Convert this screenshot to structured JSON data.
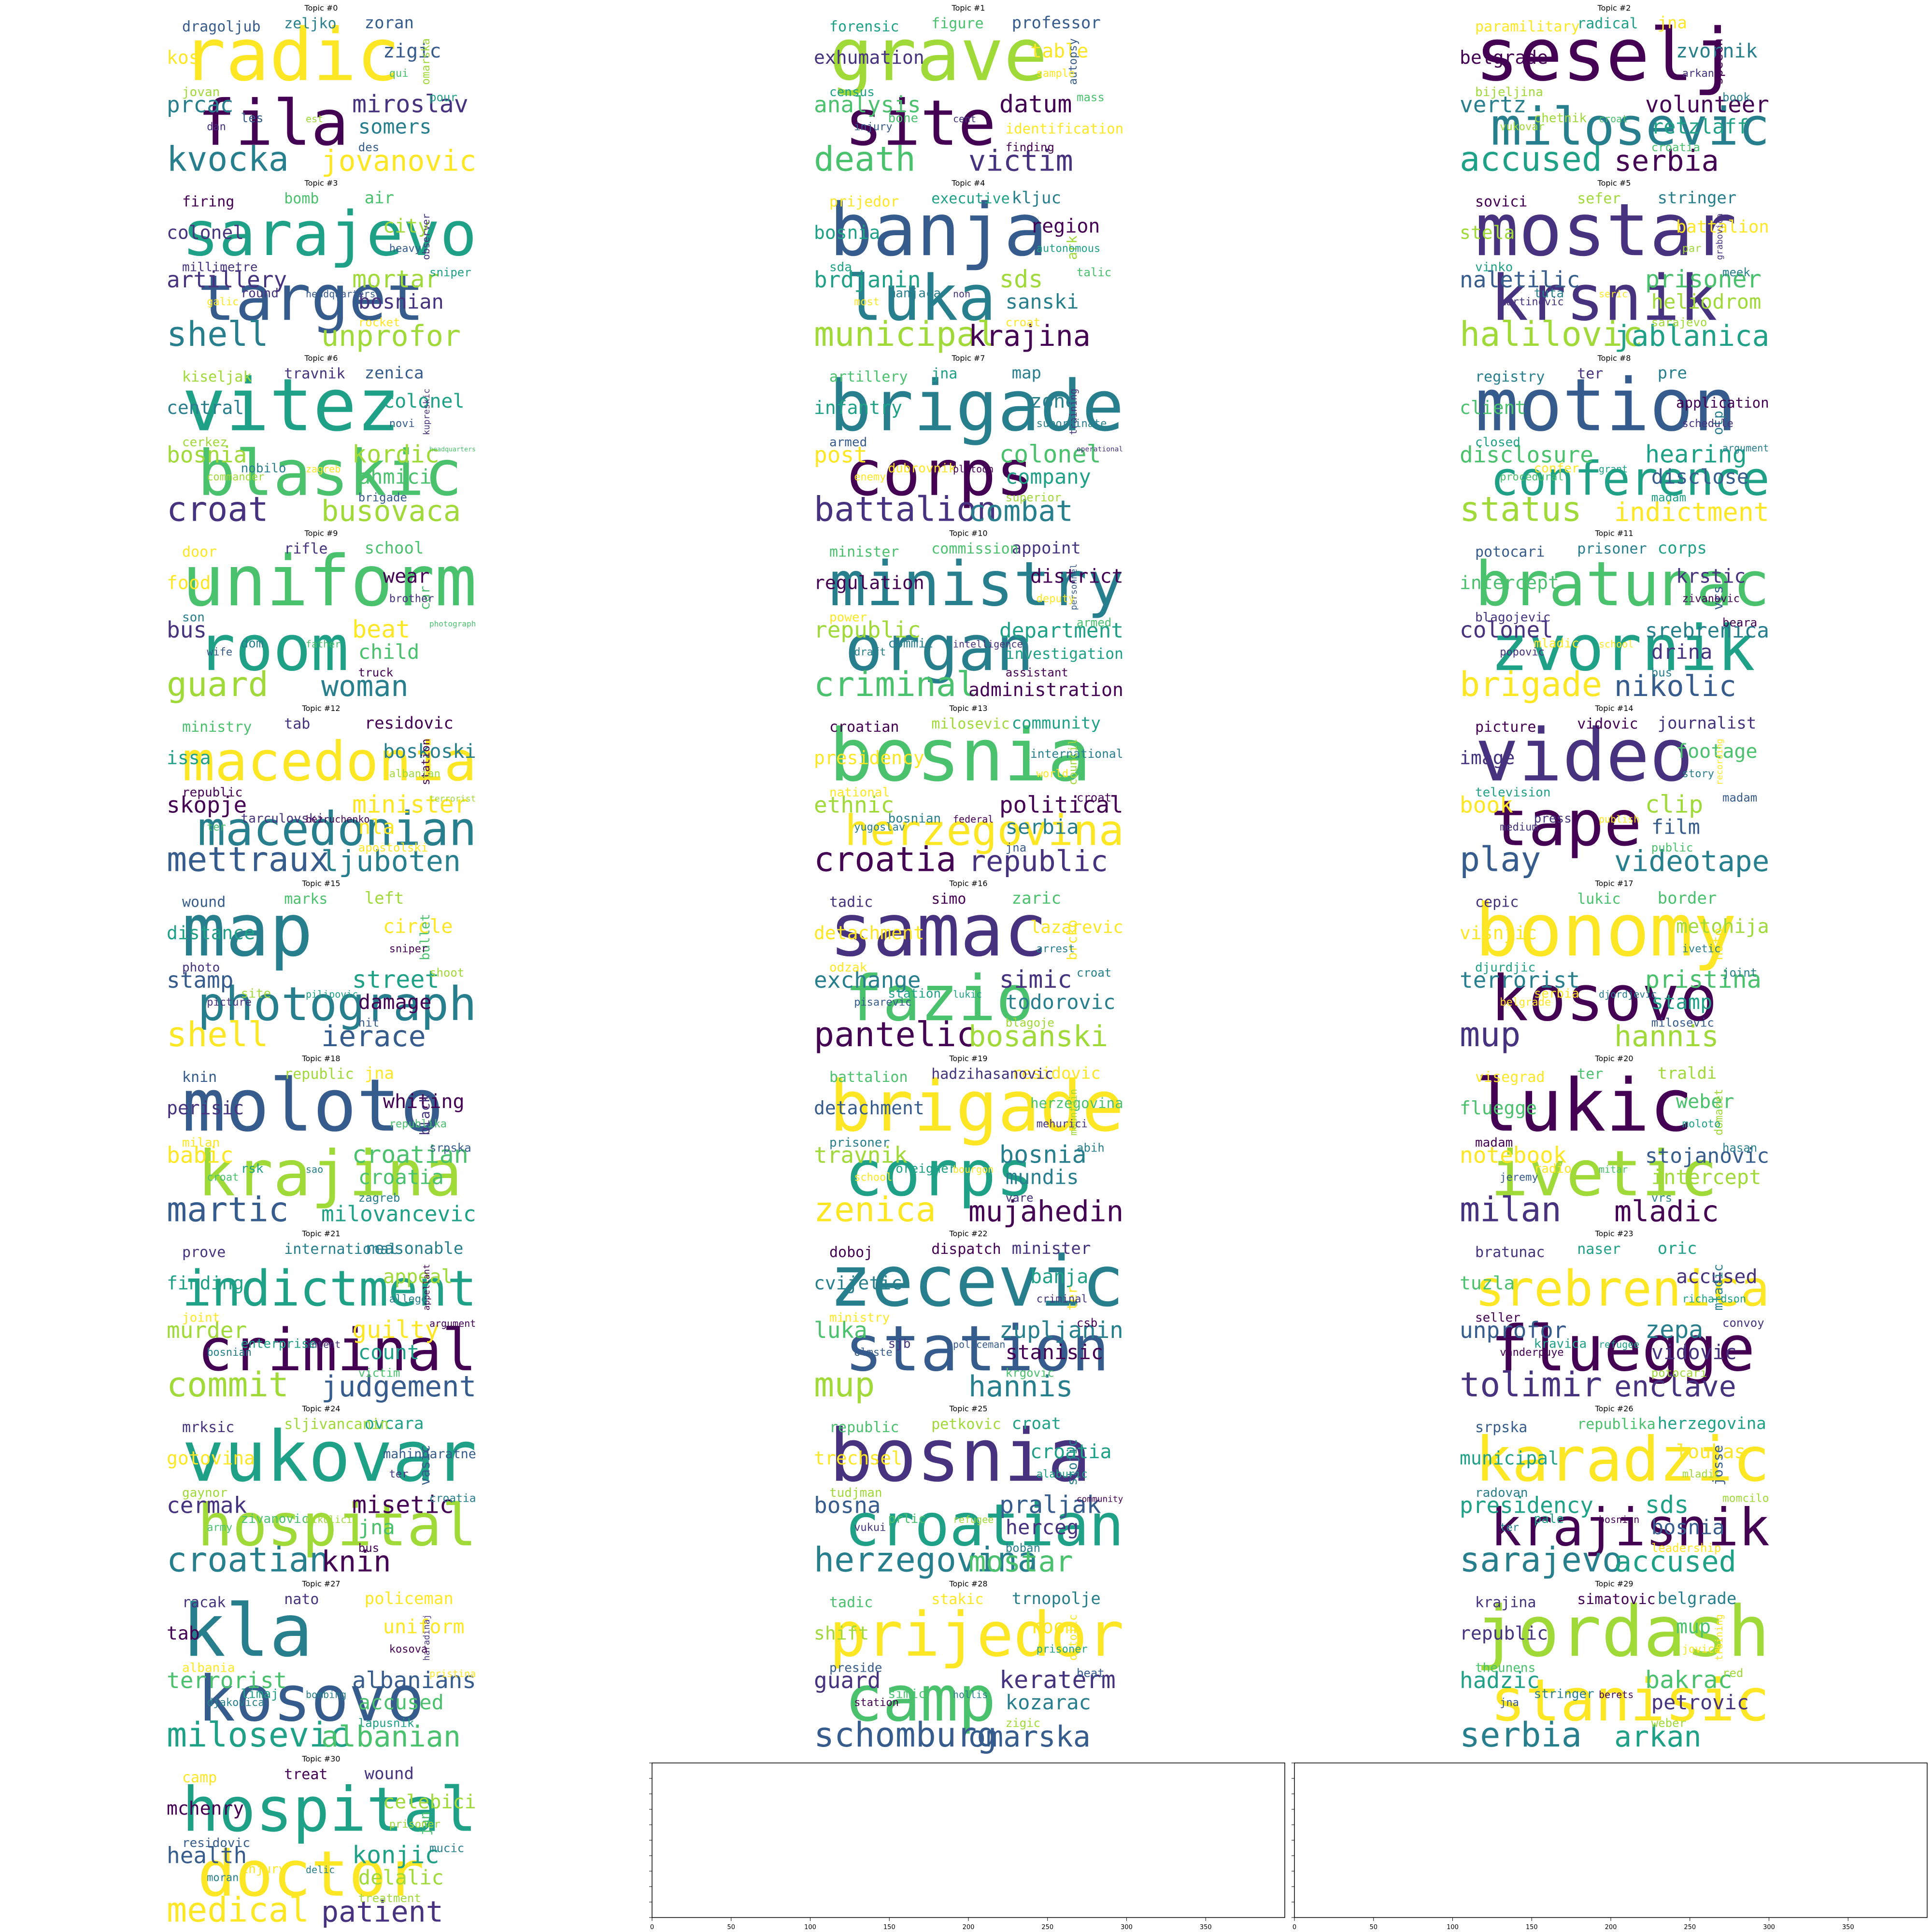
{
  "chart_data": {
    "type": "wordcloud",
    "palette": [
      "#440154",
      "#46327e",
      "#365c8d",
      "#277f8e",
      "#1fa187",
      "#4ac16d",
      "#a0da39",
      "#fde725"
    ],
    "topics": [
      {
        "title": "Topic #0",
        "words": [
          "radic",
          "fila",
          "kvocka",
          "jovanovic",
          "miroslav",
          "somers",
          "prcac",
          "zigic",
          "zoran",
          "zeljko",
          "dragoljub",
          "kos",
          "jovan",
          "omarska",
          "les",
          "pour",
          "qui",
          "des",
          "est",
          "dan"
        ]
      },
      {
        "title": "Topic #1",
        "words": [
          "grave",
          "site",
          "death",
          "victim",
          "datum",
          "identification",
          "analysis",
          "table",
          "professor",
          "figure",
          "forensic",
          "exhumation",
          "census",
          "autopsy",
          "bone",
          "mass",
          "sample",
          "finding",
          "cent",
          "injury"
        ]
      },
      {
        "title": "Topic #2",
        "words": [
          "seselj",
          "milosevic",
          "accused",
          "serbia",
          "volunteer",
          "retzlaff",
          "vertz",
          "zvornik",
          "jna",
          "radical",
          "paramilitary",
          "belgrade",
          "bijeljina",
          "speech",
          "chetnik",
          "book",
          "arkan",
          "croatia",
          "croat",
          "vukovar"
        ]
      },
      {
        "title": "Topic #3",
        "words": [
          "sarajevo",
          "target",
          "shell",
          "unprofor",
          "mortar",
          "bosnian",
          "artillery",
          "city",
          "air",
          "bomb",
          "firing",
          "colonel",
          "millimetre",
          "observer",
          "round",
          "sniper",
          "heavy",
          "rocket",
          "headquarters",
          "galic"
        ]
      },
      {
        "title": "Topic #4",
        "words": [
          "banja",
          "luka",
          "municipal",
          "krajina",
          "sds",
          "sanski",
          "brdjanin",
          "region",
          "kljuc",
          "executive",
          "prijedor",
          "bosnia",
          "sda",
          "ark",
          "manjaca",
          "talic",
          "autonomous",
          "croat",
          "non",
          "most"
        ]
      },
      {
        "title": "Topic #5",
        "words": [
          "mostar",
          "krsnik",
          "halilovic",
          "jablanica",
          "prisoner",
          "heliodrom",
          "naletilic",
          "battalion",
          "stringer",
          "sefer",
          "sovici",
          "stela",
          "vinko",
          "grabovica",
          "tuta",
          "meek",
          "par",
          "sarajevo",
          "seric",
          "martinovic"
        ]
      },
      {
        "title": "Topic #6",
        "words": [
          "vitez",
          "blaskic",
          "croat",
          "busovaca",
          "kordic",
          "ahmici",
          "bosnia",
          "colonel",
          "zenica",
          "travnik",
          "kiseljak",
          "central",
          "cerkez",
          "kupreskic",
          "nobilo",
          "headquarters",
          "novi",
          "brigade",
          "zagreb",
          "commander"
        ]
      },
      {
        "title": "Topic #7",
        "words": [
          "brigade",
          "corps",
          "battalion",
          "combat",
          "colonel",
          "company",
          "post",
          "zone",
          "map",
          "jna",
          "artillery",
          "infantry",
          "armed",
          "training",
          "dubrovnik",
          "operational",
          "subordinate",
          "superior",
          "platoon",
          "enemy"
        ]
      },
      {
        "title": "Topic #8",
        "words": [
          "motion",
          "conference",
          "status",
          "indictment",
          "hearing",
          "disclose",
          "disclosure",
          "application",
          "pre",
          "ter",
          "registry",
          "client",
          "closed",
          "otp",
          "confer",
          "argument",
          "schedule",
          "madam",
          "grant",
          "procedural"
        ]
      },
      {
        "title": "Topic #9",
        "words": [
          "uniform",
          "room",
          "guard",
          "woman",
          "beat",
          "child",
          "bus",
          "wear",
          "school",
          "rifle",
          "door",
          "food",
          "son",
          "car",
          "dom",
          "photograph",
          "brother",
          "truck",
          "father",
          "wife"
        ]
      },
      {
        "title": "Topic #10",
        "words": [
          "ministry",
          "organ",
          "criminal",
          "administration",
          "department",
          "investigation",
          "republic",
          "district",
          "appoint",
          "commission",
          "minister",
          "regulation",
          "power",
          "personnel",
          "commit",
          "armed",
          "deputy",
          "assistant",
          "intelligence",
          "draft"
        ]
      },
      {
        "title": "Topic #11",
        "words": [
          "bratunac",
          "zvornik",
          "brigade",
          "nikolic",
          "srebrenica",
          "drina",
          "colonel",
          "krstic",
          "corps",
          "prisoner",
          "potocari",
          "intercept",
          "blagojevic",
          "vrs",
          "mladic",
          "beara",
          "zivanovic",
          "bus",
          "school",
          "popovic"
        ]
      },
      {
        "title": "Topic #12",
        "words": [
          "macedonia",
          "macedonian",
          "mettraux",
          "ljuboten",
          "minister",
          "nla",
          "skopje",
          "boskoski",
          "residovic",
          "tab",
          "ministry",
          "issa",
          "republic",
          "station",
          "tarculovski",
          "terrorist",
          "albanian",
          "apostolski",
          "bezruchenko",
          "ter"
        ]
      },
      {
        "title": "Topic #13",
        "words": [
          "bosnia",
          "herzegovina",
          "croatia",
          "republic",
          "political",
          "serbia",
          "ethnic",
          "international",
          "community",
          "milosevic",
          "croatian",
          "presidency",
          "national",
          "council",
          "bosnian",
          "croat",
          "world",
          "jna",
          "federal",
          "yugoslav"
        ]
      },
      {
        "title": "Topic #14",
        "words": [
          "video",
          "tape",
          "play",
          "videotape",
          "clip",
          "film",
          "book",
          "footage",
          "journalist",
          "vidovic",
          "picture",
          "image",
          "television",
          "recording",
          "press",
          "madam",
          "story",
          "public",
          "publish",
          "medium"
        ]
      },
      {
        "title": "Topic #15",
        "words": [
          "map",
          "photograph",
          "shell",
          "ierace",
          "street",
          "damage",
          "stamp",
          "circle",
          "left",
          "marks",
          "wound",
          "distance",
          "photo",
          "bullet",
          "site",
          "shoot",
          "sniper",
          "hit",
          "pilipovic",
          "picture"
        ]
      },
      {
        "title": "Topic #16",
        "words": [
          "samac",
          "fazio",
          "pantelic",
          "bosanski",
          "simic",
          "todorovic",
          "exchange",
          "lazarevic",
          "zaric",
          "simo",
          "tadic",
          "detachment",
          "odzak",
          "brcko",
          "station",
          "croat",
          "arrest",
          "blagoje",
          "lukic",
          "pisarevic"
        ]
      },
      {
        "title": "Topic #17",
        "words": [
          "bonomy",
          "kosovo",
          "mup",
          "hannis",
          "pristina",
          "stamp",
          "terrorist",
          "metohija",
          "border",
          "lukic",
          "cepic",
          "visnjic",
          "djurdjic",
          "nato",
          "serbia",
          "joint",
          "ivetic",
          "milosevic",
          "djordjevic",
          "belgrade"
        ]
      },
      {
        "title": "Topic #18",
        "words": [
          "moloto",
          "krajina",
          "martic",
          "milovancevic",
          "croatian",
          "croatia",
          "babic",
          "whiting",
          "jna",
          "republic",
          "knin",
          "perisic",
          "milan",
          "black",
          "rsk",
          "srpska",
          "republika",
          "zagreb",
          "sao",
          "croat"
        ]
      },
      {
        "title": "Topic #19",
        "words": [
          "brigade",
          "corps",
          "zenica",
          "mujahedin",
          "bosnia",
          "mundis",
          "travnik",
          "herzegovina",
          "residovic",
          "hadzihasanovic",
          "battalion",
          "detachment",
          "prisoner",
          "mountain",
          "foreigner",
          "abih",
          "mehurici",
          "vare",
          "bourgon",
          "school"
        ]
      },
      {
        "title": "Topic #20",
        "words": [
          "lukic",
          "ivetic",
          "milan",
          "mladic",
          "stojanovic",
          "intercept",
          "notebook",
          "weber",
          "traldi",
          "ter",
          "visegrad",
          "fluegge",
          "madam",
          "domazet",
          "radio",
          "hasan",
          "moloto",
          "vrs",
          "mitar",
          "jeremy"
        ]
      },
      {
        "title": "Topic #21",
        "words": [
          "indictment",
          "criminal",
          "commit",
          "judgement",
          "guilty",
          "count",
          "murder",
          "appeal",
          "reasonable",
          "international",
          "prove",
          "finding",
          "joint",
          "appellant",
          "enterprise",
          "argument",
          "allege",
          "victim",
          "intent",
          "bosnian"
        ]
      },
      {
        "title": "Topic #22",
        "words": [
          "zecevic",
          "station",
          "mup",
          "hannis",
          "zupljanin",
          "stanisic",
          "luka",
          "banja",
          "minister",
          "dispatch",
          "doboj",
          "cvijetic",
          "ministry",
          "ter",
          "sjb",
          "csb",
          "criminal",
          "krgovic",
          "policeman",
          "olmste"
        ]
      },
      {
        "title": "Topic #23",
        "words": [
          "srebrenica",
          "fluegge",
          "tolimir",
          "enclave",
          "zepa",
          "vidovic",
          "unprofor",
          "accused",
          "oric",
          "naser",
          "bratunac",
          "tuzla",
          "seller",
          "mladic",
          "kravica",
          "convoy",
          "richardson",
          "potocari",
          "refugee",
          "vanderpuye"
        ]
      },
      {
        "title": "Topic #24",
        "words": [
          "vukovar",
          "hospital",
          "croatian",
          "knin",
          "misetic",
          "jna",
          "cermak",
          "mahindaratne",
          "ovcara",
          "sljivancanin",
          "mrksic",
          "gotovina",
          "gaynor",
          "vasic",
          "zivanovic",
          "croatia",
          "ter",
          "bus",
          "mikulicic",
          "army"
        ]
      },
      {
        "title": "Topic #25",
        "words": [
          "bosnia",
          "croatian",
          "herzegovina",
          "mostar",
          "praljak",
          "herceg",
          "bosna",
          "croatia",
          "croat",
          "petkovic",
          "republic",
          "trechsel",
          "tudjman",
          "stojic",
          "prlic",
          "community",
          "alaburic",
          "boban",
          "refugee",
          "vukui"
        ]
      },
      {
        "title": "Topic #26",
        "words": [
          "karadzic",
          "krajisnik",
          "sarajevo",
          "accused",
          "sds",
          "bosnia",
          "presidency",
          "loukas",
          "herzegovina",
          "republika",
          "srpska",
          "municipal",
          "radovan",
          "josse",
          "pale",
          "momcilo",
          "mladic",
          "leadership",
          "bosnian",
          "ter"
        ]
      },
      {
        "title": "Topic #27",
        "words": [
          "kla",
          "kosovo",
          "milosevic",
          "albanian",
          "albanians",
          "accused",
          "terrorist",
          "uniform",
          "policeman",
          "nato",
          "racak",
          "tab",
          "albania",
          "haradinaj",
          "limaj",
          "pristina",
          "kosova",
          "lapusnik",
          "bombing",
          "djakovica"
        ]
      },
      {
        "title": "Topic #28",
        "words": [
          "prijedor",
          "camp",
          "schomburg",
          "omarska",
          "keraterm",
          "kozarac",
          "guard",
          "room",
          "trnopolje",
          "stakic",
          "tadic",
          "shift",
          "preside",
          "ostojic",
          "simic",
          "beat",
          "prisoner",
          "zigic",
          "hollis",
          "station"
        ]
      },
      {
        "title": "Topic #29",
        "words": [
          "jordash",
          "stanisic",
          "serbia",
          "arkan",
          "bakrac",
          "petrovic",
          "hadzic",
          "mup",
          "belgrade",
          "simatovic",
          "krajina",
          "republic",
          "theunens",
          "training",
          "stringer",
          "red",
          "jovica",
          "weber",
          "berets",
          "jna"
        ]
      },
      {
        "title": "Topic #30",
        "words": [
          "hospital",
          "doctor",
          "medical",
          "patient",
          "konjic",
          "delalic",
          "health",
          "celebici",
          "wound",
          "treat",
          "camp",
          "mchenry",
          "residovic",
          "jan",
          "injury",
          "mucic",
          "prisoner",
          "treatment",
          "delic",
          "moran"
        ]
      }
    ],
    "empty_axes": [
      {
        "xlim": [
          0,
          400
        ],
        "xticks": [
          "0",
          "50",
          "100",
          "150",
          "200",
          "250",
          "300",
          "350"
        ]
      },
      {
        "xlim": [
          0,
          400
        ],
        "xticks": [
          "0",
          "50",
          "100",
          "150",
          "200",
          "250",
          "300",
          "350"
        ]
      }
    ]
  }
}
